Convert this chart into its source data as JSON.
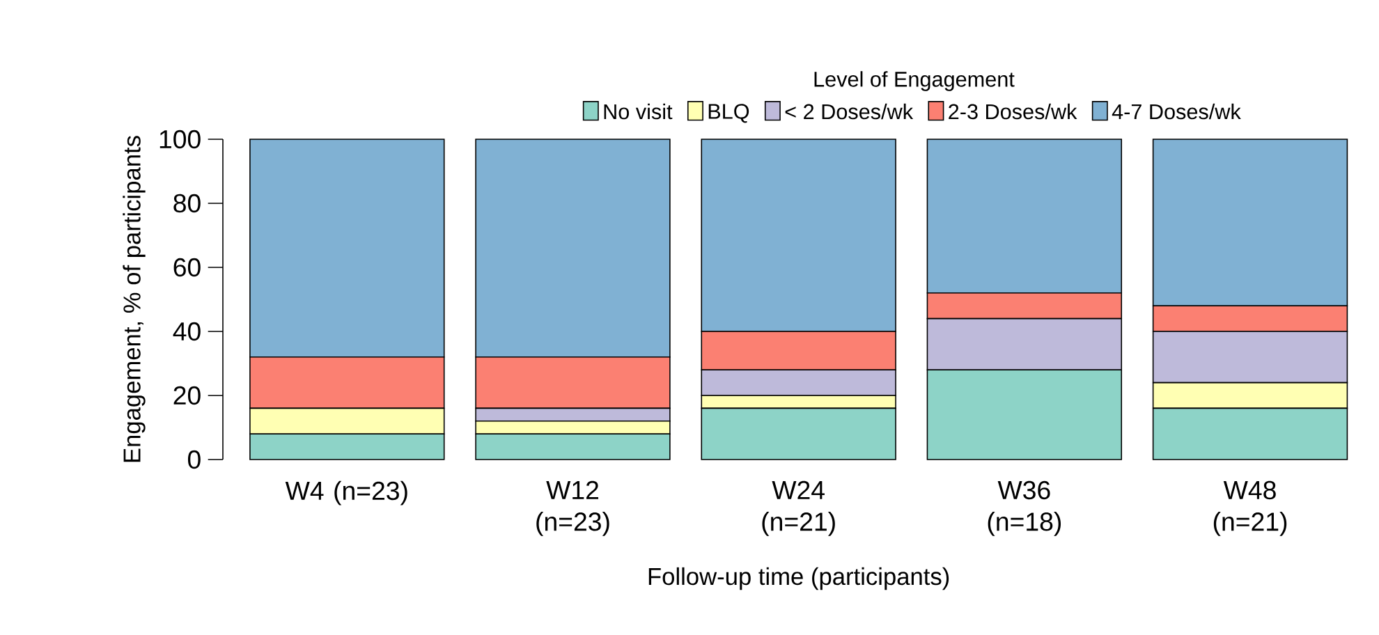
{
  "chart_data": {
    "type": "bar",
    "stacked": true,
    "legend_title": "Level of Engagement",
    "legend": "top",
    "xlabel": "Follow-up time (participants)",
    "ylabel": "Engagement, % of participants",
    "categories": [
      "W4 (n=23)",
      "W12 (n=23)",
      "W24 (n=21)",
      "W36 (n=18)",
      "W48 (n=21)"
    ],
    "ylim": [
      0,
      100
    ],
    "yticks": [
      0,
      20,
      40,
      60,
      80,
      100
    ],
    "series": [
      {
        "name": "No visit",
        "color": "#8dd3c7",
        "values": [
          8,
          8,
          16,
          28,
          16
        ]
      },
      {
        "name": "BLQ",
        "color": "#ffffb3",
        "values": [
          8,
          4,
          4,
          0,
          8
        ]
      },
      {
        "name": "< 2 Doses/wk",
        "color": "#bebada",
        "values": [
          0,
          4,
          8,
          16,
          16
        ]
      },
      {
        "name": "2-3 Doses/wk",
        "color": "#fb8072",
        "values": [
          16,
          16,
          12,
          8,
          8
        ]
      },
      {
        "name": "4-7 Doses/wk",
        "color": "#80b1d3",
        "values": [
          68,
          68,
          60,
          48,
          52
        ]
      }
    ]
  }
}
